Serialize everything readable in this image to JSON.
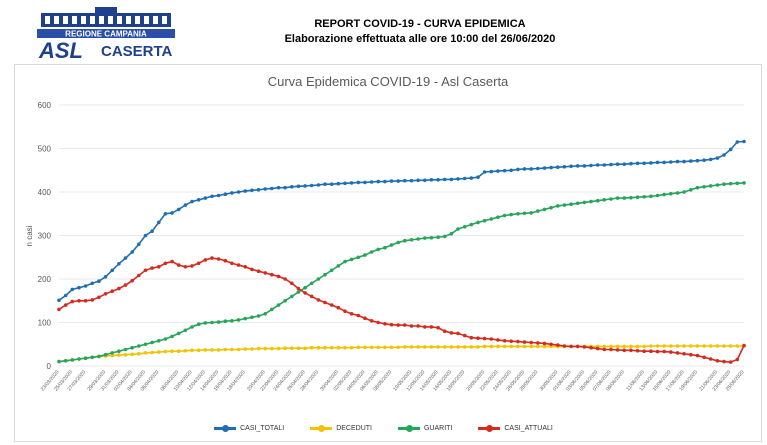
{
  "header": {
    "logo": {
      "region_text": "REGIONE CAMPANIA",
      "asl_text": "ASL",
      "city_text": "CASERTA",
      "colors": {
        "primary": "#1f3f8f",
        "accent": "#2a4fa8"
      }
    },
    "report_title": "REPORT COVID-19 - CURVA EPIDEMICA",
    "report_subtitle": "Elaborazione effettuata alle ore 10:00 del 26/06/2020"
  },
  "chart_data": {
    "type": "line",
    "title": "Curva Epidemica COVID-19 - Asl Caserta",
    "xlabel": "",
    "ylabel": "n casi",
    "ylim": [
      0,
      600
    ],
    "yticks": [
      0,
      100,
      200,
      300,
      400,
      500,
      600
    ],
    "grid": true,
    "legend_position": "bottom",
    "x_tick_labels": [
      "23/03/2020",
      "25/03/2020",
      "27/03/2020",
      "29/03/2020",
      "31/03/2020",
      "02/04/2020",
      "04/04/2020",
      "06/04/2020",
      "08/04/2020",
      "10/04/2020",
      "12/04/2020",
      "14/04/2020",
      "16/04/2020",
      "18/04/2020",
      "20/04/2020",
      "22/04/2020",
      "24/04/2020",
      "26/04/2020",
      "28/04/2020",
      "30/04/2020",
      "02/05/2020",
      "04/05/2020",
      "06/05/2020",
      "08/05/2020",
      "10/05/2020",
      "12/05/2020",
      "14/05/2020",
      "16/05/2020",
      "18/05/2020",
      "20/05/2020",
      "22/05/2020",
      "24/05/2020",
      "26/05/2020",
      "28/05/2020",
      "30/05/2020",
      "01/06/2020",
      "03/06/2020",
      "05/06/2020",
      "07/06/2020",
      "09/06/2020",
      "11/06/2020",
      "13/06/2020",
      "15/06/2020",
      "17/06/2020",
      "19/06/2020",
      "21/06/2020",
      "23/06/2020",
      "25/06/2020"
    ],
    "series": [
      {
        "name": "CASI_TOTALI",
        "color": "#1f6fb2",
        "values": [
          151,
          162,
          176,
          180,
          184,
          190,
          195,
          205,
          220,
          235,
          248,
          262,
          280,
          300,
          310,
          330,
          350,
          352,
          360,
          370,
          378,
          382,
          386,
          390,
          392,
          395,
          398,
          400,
          402,
          404,
          405,
          407,
          408,
          410,
          410,
          412,
          413,
          414,
          415,
          416,
          418,
          418,
          419,
          420,
          421,
          422,
          422,
          423,
          424,
          424,
          425,
          425,
          426,
          426,
          427,
          427,
          428,
          428,
          429,
          429,
          430,
          431,
          432,
          434,
          446,
          447,
          448,
          449,
          450,
          452,
          453,
          453,
          454,
          455,
          456,
          457,
          458,
          459,
          460,
          460,
          461,
          462,
          462,
          463,
          464,
          464,
          465,
          466,
          466,
          467,
          468,
          468,
          469,
          470,
          470,
          471,
          472,
          473,
          475,
          478,
          485,
          498,
          515,
          516
        ]
      },
      {
        "name": "DECEDUTI",
        "color": "#f2c300",
        "values": [
          10,
          12,
          14,
          16,
          18,
          20,
          22,
          23,
          24,
          25,
          26,
          27,
          28,
          30,
          31,
          32,
          33,
          34,
          34,
          35,
          36,
          36,
          37,
          37,
          37,
          38,
          38,
          38,
          39,
          39,
          40,
          40,
          40,
          40,
          41,
          41,
          41,
          41,
          42,
          42,
          42,
          42,
          42,
          42,
          42,
          43,
          43,
          43,
          43,
          43,
          43,
          43,
          44,
          44,
          44,
          44,
          44,
          44,
          44,
          44,
          44,
          44,
          44,
          44,
          45,
          45,
          45,
          45,
          45,
          45,
          45,
          45,
          45,
          45,
          45,
          45,
          45,
          45,
          45,
          45,
          45,
          45,
          45,
          45,
          45,
          45,
          45,
          45,
          45,
          46,
          46,
          46,
          46,
          46,
          46,
          46,
          46,
          46,
          46,
          46,
          46,
          46,
          46,
          46
        ]
      },
      {
        "name": "GUARITI",
        "color": "#27a55a",
        "values": [
          10,
          12,
          14,
          16,
          18,
          20,
          22,
          26,
          30,
          34,
          38,
          42,
          46,
          50,
          54,
          58,
          62,
          68,
          75,
          82,
          90,
          96,
          99,
          100,
          101,
          103,
          104,
          106,
          109,
          112,
          115,
          120,
          130,
          140,
          150,
          160,
          170,
          180,
          190,
          200,
          210,
          220,
          230,
          240,
          245,
          250,
          255,
          262,
          268,
          272,
          278,
          284,
          288,
          290,
          292,
          294,
          295,
          296,
          298,
          304,
          315,
          320,
          325,
          330,
          334,
          338,
          342,
          346,
          348,
          350,
          351,
          352,
          356,
          360,
          364,
          368,
          370,
          372,
          374,
          376,
          378,
          380,
          382,
          384,
          386,
          386,
          387,
          388,
          389,
          390,
          392,
          394,
          396,
          398,
          400,
          405,
          410,
          412,
          414,
          416,
          418,
          419,
          420,
          421
        ]
      },
      {
        "name": "CASI_ATTUALI",
        "color": "#d42b1e",
        "values": [
          130,
          140,
          148,
          150,
          150,
          152,
          158,
          166,
          172,
          178,
          186,
          196,
          208,
          220,
          225,
          228,
          236,
          240,
          232,
          228,
          230,
          236,
          244,
          248,
          246,
          242,
          236,
          232,
          228,
          222,
          218,
          214,
          210,
          206,
          200,
          190,
          178,
          168,
          160,
          152,
          146,
          140,
          134,
          126,
          120,
          116,
          110,
          104,
          100,
          97,
          95,
          94,
          94,
          92,
          92,
          90,
          90,
          88,
          80,
          76,
          75,
          70,
          65,
          64,
          63,
          62,
          60,
          58,
          57,
          56,
          55,
          54,
          53,
          52,
          50,
          48,
          46,
          45,
          45,
          44,
          42,
          40,
          38,
          38,
          37,
          36,
          36,
          35,
          34,
          34,
          33,
          33,
          32,
          30,
          28,
          26,
          24,
          20,
          16,
          12,
          10,
          9,
          15,
          47
        ]
      }
    ]
  },
  "legend": {
    "items": [
      {
        "label": "CASI_TOTALI",
        "color": "#1f6fb2"
      },
      {
        "label": "DECEDUTI",
        "color": "#f2c300"
      },
      {
        "label": "GUARITI",
        "color": "#27a55a"
      },
      {
        "label": "CASI_ATTUALI",
        "color": "#d42b1e"
      }
    ]
  }
}
